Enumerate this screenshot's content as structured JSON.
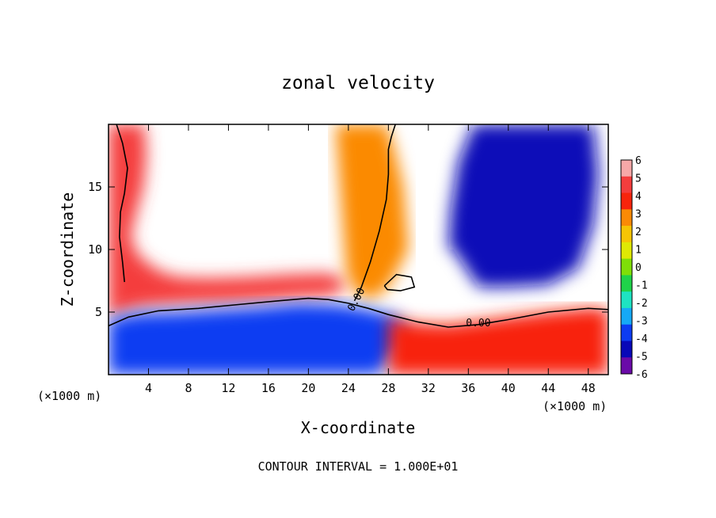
{
  "chart_data": {
    "type": "heatmap",
    "title": "zonal velocity",
    "xlabel": "X-coordinate",
    "ylabel": "Z-coordinate",
    "x_unit_left": "(×1000 m)",
    "x_unit_right": "(×1000 m)",
    "footer": "CONTOUR INTERVAL = 1.000E+01",
    "xlim": [
      0,
      50
    ],
    "ylim": [
      0,
      20
    ],
    "xticks": [
      "4",
      "8",
      "12",
      "16",
      "20",
      "24",
      "28",
      "32",
      "36",
      "40",
      "44",
      "48"
    ],
    "xtick_values": [
      4,
      8,
      12,
      16,
      20,
      24,
      28,
      32,
      36,
      40,
      44,
      48
    ],
    "yticks": [
      "5",
      "10",
      "15"
    ],
    "ytick_values": [
      5,
      10,
      15
    ],
    "colorbar": {
      "labels": [
        "6",
        "5",
        "4",
        "3",
        "2",
        "1",
        "0",
        "-1",
        "-2",
        "-3",
        "-4",
        "-5",
        "-6"
      ],
      "values": [
        6,
        5,
        4,
        3,
        2,
        1,
        0,
        -1,
        -2,
        -3,
        -4,
        -5,
        -6
      ],
      "colors": [
        "#f7a8a8",
        "#f43d3d",
        "#f8240c",
        "#fb8a05",
        "#f6c504",
        "#dfe904",
        "#7fdf08",
        "#1fd34a",
        "#1ee3c2",
        "#16a9f6",
        "#0d3cf2",
        "#0808b8",
        "#6a0aa8"
      ]
    },
    "contour_labels": [
      "0.00",
      "0.00"
    ],
    "zero_contours": [
      {
        "name": "lower",
        "x": [
          0,
          2,
          5,
          9,
          13,
          17,
          20,
          22,
          24,
          26,
          28,
          31,
          34,
          37,
          40,
          44,
          48,
          50
        ],
        "y": [
          3.9,
          4.6,
          5.1,
          5.3,
          5.6,
          5.9,
          6.1,
          6.0,
          5.7,
          5.3,
          4.8,
          4.2,
          3.8,
          4.0,
          4.4,
          5.0,
          5.3,
          5.2
        ]
      },
      {
        "name": "vertical",
        "x": [
          24.6,
          25.3,
          26.2,
          27.1,
          27.8,
          28.0,
          28.0,
          28.3,
          28.7
        ],
        "y": [
          5.9,
          7.0,
          9.0,
          11.5,
          14.0,
          16.0,
          18.0,
          19.0,
          20.0
        ]
      },
      {
        "name": "edge-left",
        "x": [
          0.8,
          1.4,
          1.9,
          1.6,
          1.2,
          1.1,
          1.4,
          1.6
        ],
        "y": [
          20.0,
          18.5,
          16.5,
          14.5,
          13.0,
          11.0,
          9.0,
          7.4
        ]
      },
      {
        "name": "blob",
        "x": [
          27.6,
          28.8,
          30.3,
          30.6,
          29.2,
          27.9,
          27.6
        ],
        "y": [
          7.1,
          8.0,
          7.8,
          7.0,
          6.7,
          6.8,
          7.1
        ]
      }
    ],
    "fields": [
      {
        "name": "west-upper",
        "x": [
          0,
          2,
          4,
          6,
          8,
          12,
          16,
          19,
          22,
          23.5,
          23.8,
          22,
          18,
          14,
          10,
          7,
          5,
          3,
          2.2,
          2.8,
          3.5,
          3.8,
          3.6,
          2.5,
          1.2,
          0
        ],
        "y": [
          4.6,
          5.2,
          5.5,
          5.6,
          5.7,
          5.8,
          6.0,
          6.2,
          6.3,
          6.8,
          7.5,
          8.1,
          8.0,
          7.8,
          7.7,
          7.8,
          8.3,
          9.5,
          11,
          13,
          15,
          17.5,
          20,
          20,
          20,
          20
        ],
        "v": 5
      },
      {
        "name": "central-jet",
        "x": [
          22.7,
          24.3,
          26.2,
          27.8,
          28.6,
          29.5,
          30.0,
          28.0,
          26.3,
          24.8,
          23.8
        ],
        "y": [
          20,
          20,
          20,
          20,
          18,
          15,
          10,
          7,
          6,
          6.5,
          8
        ],
        "v": 3
      },
      {
        "name": "west-lower",
        "x": [
          0,
          3,
          7,
          11,
          15,
          19,
          23,
          26,
          29,
          30,
          27,
          24,
          20,
          16,
          12,
          8,
          4,
          1,
          0
        ],
        "y": [
          4.4,
          4.9,
          5.0,
          5.2,
          5.4,
          5.7,
          5.6,
          5.2,
          4.6,
          3.0,
          0,
          0,
          0,
          0,
          0,
          0,
          0,
          0,
          0
        ],
        "v": -4
      },
      {
        "name": "east-lower",
        "x": [
          28,
          31,
          34,
          37,
          40,
          44,
          48,
          50,
          50,
          46,
          42,
          38,
          34,
          30,
          28
        ],
        "y": [
          4.5,
          4.1,
          4.0,
          4.3,
          4.6,
          5.0,
          5.3,
          5.2,
          0,
          0,
          0,
          0,
          0,
          0,
          0
        ],
        "v": 4
      },
      {
        "name": "east-upper",
        "x": [
          34.5,
          37,
          40,
          44,
          47,
          48.5,
          49.0,
          48.5,
          46.5,
          44.0,
          40.0,
          36.5,
          35.0,
          34.2,
          34.0
        ],
        "y": [
          10,
          7.0,
          7.0,
          7.2,
          8.5,
          12,
          16,
          20,
          20,
          20,
          20,
          20,
          17,
          13,
          10
        ],
        "v": -5
      }
    ]
  }
}
